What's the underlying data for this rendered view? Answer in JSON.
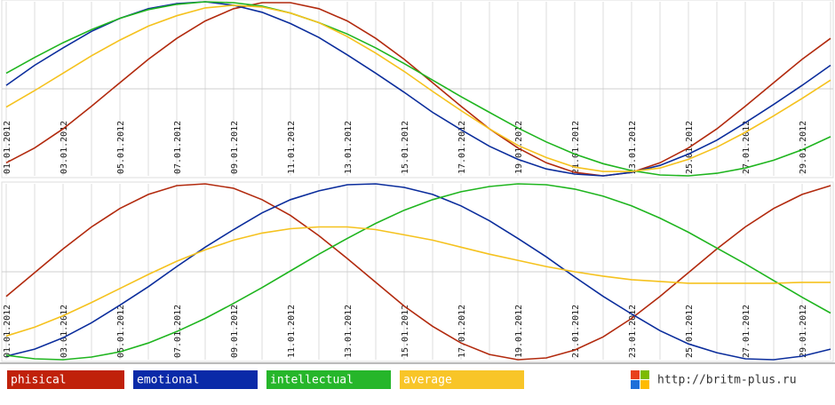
{
  "chart_data": [
    {
      "type": "line",
      "categories": [
        "01.01.2012",
        null,
        "03.01.2012",
        null,
        "05.01.2012",
        null,
        "07.01.2012",
        null,
        "09.01.2012",
        null,
        "11.01.2012",
        null,
        "13.01.2012",
        null,
        "15.01.2012",
        null,
        "17.01.2012",
        null,
        "19.01.2012",
        null,
        "21.01.2012",
        null,
        "23.01.2012",
        null,
        "25.01.2012",
        null,
        "27.01.2012",
        null,
        "29.01.2012",
        null
      ],
      "ylim": [
        -100,
        100
      ],
      "yticks": [
        0
      ],
      "grid": true,
      "series": [
        {
          "name": "phisical",
          "color": "#b22a0e",
          "values": [
            -85,
            -68,
            -46,
            -20,
            7,
            34,
            58,
            78,
            92,
            99,
            99,
            92,
            78,
            58,
            34,
            7,
            -20,
            -46,
            -68,
            -85,
            -96,
            -100,
            -96,
            -85,
            -68,
            -46,
            -20,
            7,
            34,
            58
          ]
        },
        {
          "name": "emotional",
          "color": "#0b2d9c",
          "values": [
            4,
            27,
            47,
            66,
            81,
            92,
            98,
            100,
            96,
            88,
            75,
            59,
            39,
            18,
            -4,
            -27,
            -47,
            -66,
            -81,
            -92,
            -98,
            -100,
            -96,
            -88,
            -75,
            -59,
            -39,
            -18,
            4,
            27
          ]
        },
        {
          "name": "intellectual",
          "color": "#1fb51f",
          "values": [
            18,
            36,
            53,
            68,
            81,
            91,
            97,
            100,
            99,
            95,
            87,
            76,
            63,
            47,
            29,
            10,
            -9,
            -27,
            -45,
            -61,
            -75,
            -86,
            -94,
            -99,
            -100,
            -97,
            -91,
            -82,
            -70,
            -55
          ]
        },
        {
          "name": "average",
          "color": "#f5c21e",
          "values": [
            -21,
            -2,
            18,
            38,
            56,
            72,
            84,
            93,
            96,
            94,
            87,
            76,
            60,
            41,
            20,
            -3,
            -25,
            -46,
            -65,
            -79,
            -90,
            -95,
            -95,
            -91,
            -81,
            -67,
            -50,
            -31,
            -11,
            10
          ]
        }
      ]
    },
    {
      "type": "line",
      "categories": [
        "01.01.2012",
        null,
        "03.01.2012",
        null,
        "05.01.2012",
        null,
        "07.01.2012",
        null,
        "09.01.2012",
        null,
        "11.01.2012",
        null,
        "13.01.2012",
        null,
        "15.01.2012",
        null,
        "17.01.2012",
        null,
        "19.01.2012",
        null,
        "21.01.2012",
        null,
        "23.01.2012",
        null,
        "25.01.2012",
        null,
        "27.01.2012",
        null,
        "29.01.2012",
        null
      ],
      "ylim": [
        -100,
        100
      ],
      "yticks": [
        0
      ],
      "grid": true,
      "series": [
        {
          "color": "#b22a0e",
          "values": [
            -28,
            -1,
            26,
            51,
            72,
            88,
            98,
            100,
            95,
            82,
            64,
            41,
            15,
            -12,
            -39,
            -62,
            -81,
            -94,
            -100,
            -98,
            -89,
            -74,
            -53,
            -28,
            -1,
            26,
            51,
            72,
            88,
            98
          ]
        },
        {
          "color": "#0b2d9c",
          "values": [
            -96,
            -88,
            -75,
            -58,
            -38,
            -17,
            6,
            28,
            48,
            67,
            82,
            92,
            99,
            100,
            96,
            88,
            75,
            58,
            38,
            17,
            -6,
            -28,
            -48,
            -67,
            -82,
            -92,
            -99,
            -100,
            -96,
            -88
          ]
        },
        {
          "color": "#1fb51f",
          "values": [
            -95,
            -99,
            -100,
            -97,
            -91,
            -81,
            -68,
            -53,
            -36,
            -18,
            1,
            20,
            38,
            55,
            70,
            82,
            91,
            97,
            100,
            99,
            94,
            86,
            75,
            61,
            45,
            27,
            9,
            -10,
            -29,
            -47
          ]
        },
        {
          "color": "#f5c21e",
          "values": [
            -73,
            -63,
            -50,
            -35,
            -19,
            -3,
            12,
            25,
            36,
            44,
            49,
            51,
            51,
            48,
            42,
            36,
            28,
            20,
            13,
            6,
            0,
            -5,
            -9,
            -11,
            -13,
            -13,
            -13,
            -13,
            -12,
            -12
          ]
        }
      ]
    }
  ],
  "legend_colors": [
    "#c0210a",
    "#0a2aa8",
    "#26b62a",
    "#f8c528"
  ],
  "url": "http://britm-plus.ru"
}
